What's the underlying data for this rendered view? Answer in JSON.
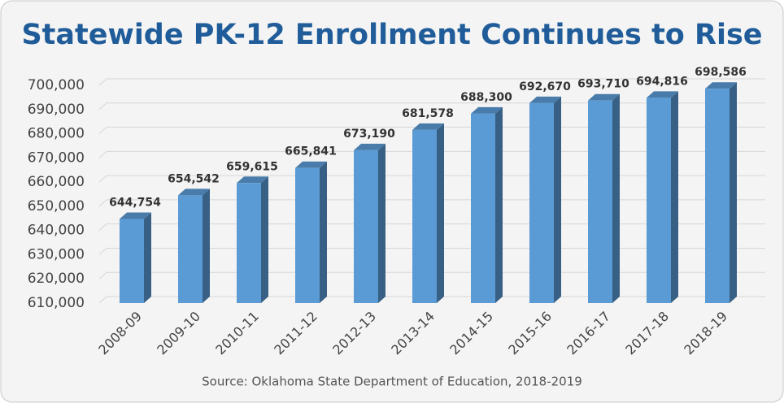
{
  "chart_data": {
    "type": "bar3d",
    "title": "Statewide PK-12 Enrollment Continues to Rise",
    "source": "Source: Oklahoma State Department of Education, 2018-2019",
    "categories": [
      "2008-09",
      "2009-10",
      "2010-11",
      "2011-12",
      "2012-13",
      "2013-14",
      "2014-15",
      "2015-16",
      "2016-17",
      "2017-18",
      "2018-19"
    ],
    "values": [
      644754,
      654542,
      659615,
      665841,
      673190,
      681578,
      688300,
      692670,
      693710,
      694816,
      698586
    ],
    "value_labels": [
      "644,754",
      "654,542",
      "659,615",
      "665,841",
      "673,190",
      "681,578",
      "688,300",
      "692,670",
      "693,710",
      "694,816",
      "698,586"
    ],
    "color": "#5b9bd5",
    "ylim": [
      610000,
      700000
    ],
    "yticks": [
      {
        "value": 610000,
        "label": "610,000"
      },
      {
        "value": 620000,
        "label": "620,000"
      },
      {
        "value": 630000,
        "label": "630,000"
      },
      {
        "value": 640000,
        "label": "640,000"
      },
      {
        "value": 650000,
        "label": "650,000"
      },
      {
        "value": 660000,
        "label": "660,000"
      },
      {
        "value": 670000,
        "label": "670,000"
      },
      {
        "value": 680000,
        "label": "680,000"
      },
      {
        "value": 690000,
        "label": "690,000"
      },
      {
        "value": 700000,
        "label": "700,000"
      }
    ],
    "grid": true
  }
}
